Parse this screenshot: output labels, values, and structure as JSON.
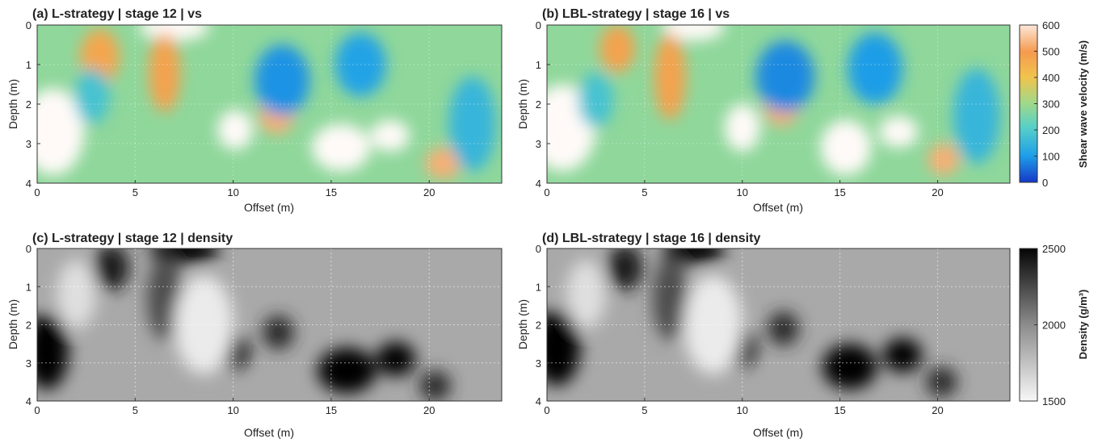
{
  "chart_data": [
    {
      "type": "heatmap",
      "panel": "a",
      "title": "(a) L-strategy | stage 12 | vs",
      "xlabel": "Offset (m)",
      "ylabel": "Depth (m)",
      "xlim": [
        0,
        23.7
      ],
      "ylim": [
        0,
        4
      ],
      "y_reversed": true,
      "xticks": [
        "0",
        "5",
        "10",
        "15",
        "20"
      ],
      "yticks": [
        "0",
        "1",
        "2",
        "3",
        "4"
      ],
      "colormap": "jet-like",
      "features": [
        {
          "x": 0.8,
          "y": 2.7,
          "v": 620,
          "rx": 1.6,
          "ry": 1.1
        },
        {
          "x": 7.0,
          "y": 0.05,
          "v": 640,
          "rx": 1.8,
          "ry": 0.35
        },
        {
          "x": 10.1,
          "y": 2.65,
          "v": 600,
          "rx": 0.9,
          "ry": 0.5
        },
        {
          "x": 12.2,
          "y": 2.3,
          "v": 520,
          "rx": 0.9,
          "ry": 0.45
        },
        {
          "x": 15.5,
          "y": 3.1,
          "v": 600,
          "rx": 1.5,
          "ry": 0.6
        },
        {
          "x": 18.0,
          "y": 2.8,
          "v": 620,
          "rx": 1.0,
          "ry": 0.4
        },
        {
          "x": 20.7,
          "y": 3.5,
          "v": 520,
          "rx": 0.9,
          "ry": 0.4
        },
        {
          "x": 6.5,
          "y": 1.2,
          "v": 480,
          "rx": 0.8,
          "ry": 1.0
        },
        {
          "x": 3.2,
          "y": 0.8,
          "v": 470,
          "rx": 1.0,
          "ry": 0.7
        },
        {
          "x": 12.5,
          "y": 1.4,
          "v": 90,
          "rx": 1.4,
          "ry": 0.9
        },
        {
          "x": 16.5,
          "y": 1.0,
          "v": 110,
          "rx": 1.3,
          "ry": 0.8
        },
        {
          "x": 22.2,
          "y": 2.5,
          "v": 150,
          "rx": 1.2,
          "ry": 1.2
        },
        {
          "x": 2.8,
          "y": 1.8,
          "v": 180,
          "rx": 0.9,
          "ry": 0.7
        }
      ]
    },
    {
      "type": "heatmap",
      "panel": "b",
      "title": "(b) LBL-strategy | stage 16 | vs",
      "xlabel": "Offset (m)",
      "ylabel": "Depth (m)",
      "xlim": [
        0,
        23.7
      ],
      "ylim": [
        0,
        4
      ],
      "y_reversed": true,
      "xticks": [
        "0",
        "5",
        "10",
        "15",
        "20"
      ],
      "yticks": [
        "0",
        "1",
        "2",
        "3",
        "4"
      ],
      "colormap": "jet-like",
      "features": [
        {
          "x": 0.8,
          "y": 2.6,
          "v": 620,
          "rx": 1.7,
          "ry": 1.1
        },
        {
          "x": 7.5,
          "y": 0.05,
          "v": 640,
          "rx": 1.6,
          "ry": 0.35
        },
        {
          "x": 10.0,
          "y": 2.6,
          "v": 600,
          "rx": 0.9,
          "ry": 0.6
        },
        {
          "x": 12.0,
          "y": 2.1,
          "v": 520,
          "rx": 0.9,
          "ry": 0.45
        },
        {
          "x": 15.3,
          "y": 3.1,
          "v": 620,
          "rx": 1.3,
          "ry": 0.7
        },
        {
          "x": 18.0,
          "y": 2.7,
          "v": 620,
          "rx": 1.0,
          "ry": 0.4
        },
        {
          "x": 20.3,
          "y": 3.4,
          "v": 520,
          "rx": 0.8,
          "ry": 0.4
        },
        {
          "x": 6.3,
          "y": 1.3,
          "v": 480,
          "rx": 0.8,
          "ry": 1.1
        },
        {
          "x": 3.6,
          "y": 0.6,
          "v": 480,
          "rx": 0.9,
          "ry": 0.6
        },
        {
          "x": 12.2,
          "y": 1.3,
          "v": 80,
          "rx": 1.5,
          "ry": 0.9
        },
        {
          "x": 16.8,
          "y": 1.1,
          "v": 100,
          "rx": 1.4,
          "ry": 0.9
        },
        {
          "x": 22.0,
          "y": 2.3,
          "v": 150,
          "rx": 1.2,
          "ry": 1.2
        },
        {
          "x": 2.5,
          "y": 1.9,
          "v": 180,
          "rx": 0.9,
          "ry": 0.7
        }
      ]
    },
    {
      "type": "heatmap",
      "panel": "c",
      "title": "(c) L-strategy | stage 12 | density",
      "xlabel": "Offset (m)",
      "ylabel": "Depth (m)",
      "xlim": [
        0,
        23.7
      ],
      "ylim": [
        0,
        4
      ],
      "y_reversed": true,
      "xticks": [
        "0",
        "5",
        "10",
        "15",
        "20"
      ],
      "yticks": [
        "0",
        "1",
        "2",
        "3",
        "4"
      ],
      "colormap": "gray-reversed",
      "features": [
        {
          "x": 0.5,
          "y": 2.7,
          "v": 2500,
          "rx": 1.1,
          "ry": 1.0
        },
        {
          "x": 7.5,
          "y": 0.05,
          "v": 2500,
          "rx": 1.8,
          "ry": 0.35
        },
        {
          "x": 10.1,
          "y": 2.7,
          "v": 2450,
          "rx": 0.7,
          "ry": 0.45
        },
        {
          "x": 12.3,
          "y": 2.2,
          "v": 2350,
          "rx": 0.8,
          "ry": 0.45
        },
        {
          "x": 15.8,
          "y": 3.2,
          "v": 2500,
          "rx": 1.5,
          "ry": 0.6
        },
        {
          "x": 18.3,
          "y": 2.9,
          "v": 2500,
          "rx": 1.0,
          "ry": 0.45
        },
        {
          "x": 20.3,
          "y": 3.6,
          "v": 2350,
          "rx": 0.8,
          "ry": 0.4
        },
        {
          "x": 3.8,
          "y": 0.5,
          "v": 2400,
          "rx": 0.9,
          "ry": 0.6
        },
        {
          "x": 6.5,
          "y": 1.3,
          "v": 2200,
          "rx": 0.9,
          "ry": 1.1
        },
        {
          "x": 8.5,
          "y": 2.0,
          "v": 1550,
          "rx": 1.5,
          "ry": 1.3
        },
        {
          "x": 2.0,
          "y": 1.2,
          "v": 1600,
          "rx": 1.0,
          "ry": 0.9
        }
      ]
    },
    {
      "type": "heatmap",
      "panel": "d",
      "title": "(d) LBL-strategy | stage 16 | density",
      "xlabel": "Offset (m)",
      "ylabel": "Depth (m)",
      "xlim": [
        0,
        23.7
      ],
      "ylim": [
        0,
        4
      ],
      "y_reversed": true,
      "xticks": [
        "0",
        "5",
        "10",
        "15",
        "20"
      ],
      "yticks": [
        "0",
        "1",
        "2",
        "3",
        "4"
      ],
      "colormap": "gray-reversed",
      "features": [
        {
          "x": 0.5,
          "y": 2.6,
          "v": 2500,
          "rx": 1.2,
          "ry": 1.0
        },
        {
          "x": 7.5,
          "y": 0.05,
          "v": 2500,
          "rx": 1.6,
          "ry": 0.35
        },
        {
          "x": 10.0,
          "y": 2.6,
          "v": 2450,
          "rx": 0.7,
          "ry": 0.5
        },
        {
          "x": 12.1,
          "y": 2.1,
          "v": 2350,
          "rx": 0.8,
          "ry": 0.45
        },
        {
          "x": 15.5,
          "y": 3.1,
          "v": 2500,
          "rx": 1.4,
          "ry": 0.6
        },
        {
          "x": 18.2,
          "y": 2.8,
          "v": 2500,
          "rx": 1.0,
          "ry": 0.45
        },
        {
          "x": 20.2,
          "y": 3.5,
          "v": 2350,
          "rx": 0.8,
          "ry": 0.4
        },
        {
          "x": 4.0,
          "y": 0.5,
          "v": 2400,
          "rx": 0.9,
          "ry": 0.6
        },
        {
          "x": 6.3,
          "y": 1.3,
          "v": 2200,
          "rx": 0.9,
          "ry": 1.1
        },
        {
          "x": 8.5,
          "y": 2.0,
          "v": 1550,
          "rx": 1.5,
          "ry": 1.3
        },
        {
          "x": 2.0,
          "y": 1.2,
          "v": 1600,
          "rx": 1.0,
          "ry": 0.9
        }
      ]
    }
  ],
  "colorbars": [
    {
      "label": "Shear wave velocity (m/s)",
      "range": [
        0,
        600
      ],
      "ticks": [
        "600",
        "500",
        "400",
        "300",
        "200",
        "100",
        "0"
      ],
      "colormap": "jet-like"
    },
    {
      "label": "Density (g/m³)",
      "range": [
        1500,
        2500
      ],
      "ticks": [
        "2500",
        "2000",
        "1500"
      ],
      "colormap": "gray-reversed"
    }
  ]
}
